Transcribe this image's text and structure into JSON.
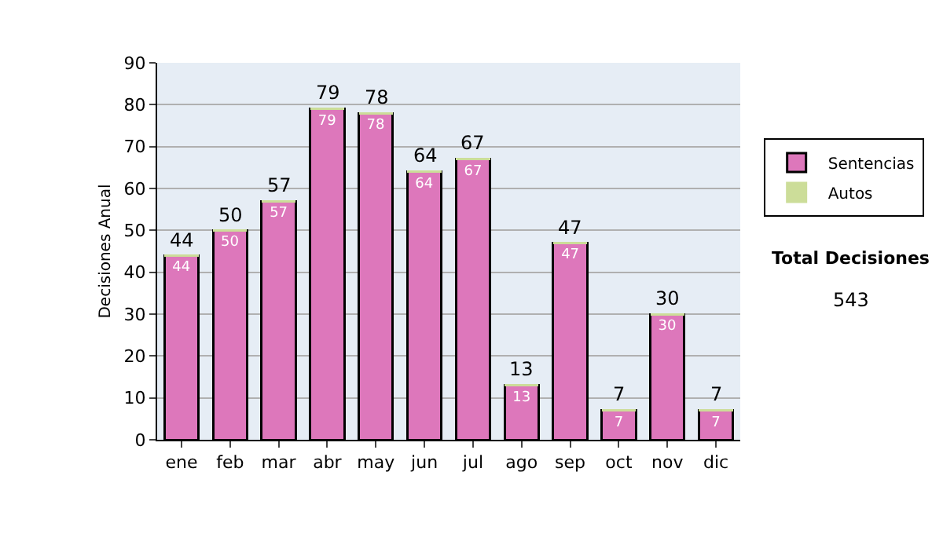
{
  "chart_data": {
    "type": "bar",
    "stacked": true,
    "ylabel": "Decisiones Anual",
    "categories": [
      "ene",
      "feb",
      "mar",
      "abr",
      "may",
      "jun",
      "jul",
      "ago",
      "sep",
      "oct",
      "nov",
      "dic"
    ],
    "series": [
      {
        "name": "Sentencias",
        "color": "#dd77bb",
        "values": [
          44,
          50,
          57,
          79,
          78,
          64,
          67,
          13,
          47,
          7,
          30,
          7
        ],
        "value_labels": [
          "44",
          "50",
          "57",
          "79",
          "78",
          "64",
          "67",
          "13",
          "47",
          "7",
          "30",
          "7"
        ]
      },
      {
        "name": "Autos",
        "color": "#ccdd99",
        "values": [
          0,
          0,
          0,
          0,
          0,
          0,
          0,
          0,
          0,
          0,
          0,
          0
        ]
      }
    ],
    "totals": [
      "44",
      "50",
      "57",
      "79",
      "78",
      "64",
      "67",
      "13",
      "47",
      "7",
      "30",
      "7"
    ],
    "ylim": [
      0,
      90
    ],
    "yticks": [
      0,
      10,
      20,
      30,
      40,
      50,
      60,
      70,
      80,
      90
    ],
    "grid": "y",
    "legend": "right",
    "annotations": [
      "Total Decisiones",
      "543"
    ]
  }
}
